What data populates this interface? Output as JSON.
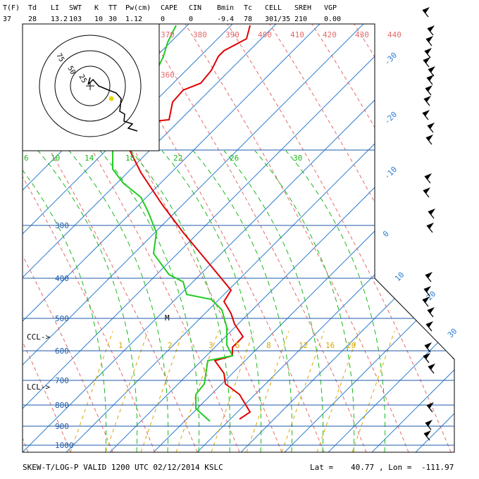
{
  "header": {
    "labels": [
      "T(F)",
      "Td",
      "LI",
      "SWT",
      "K",
      "TT",
      "Pw(cm)",
      "CAPE",
      "CIN",
      "Bmin",
      "Tc",
      "CELL",
      "SREH",
      "VGP"
    ],
    "values": [
      "37",
      "28",
      "13.2",
      "103",
      "10",
      "30",
      "1.12",
      "0",
      "0",
      "-9.4",
      "78",
      "301/35",
      "210",
      "0.00"
    ]
  },
  "footer": {
    "title": "SKEW-T/LOG-P VALID 1200 UTC 02/12/2014   KSLC",
    "lat_label": "Lat =",
    "lat": "40.77",
    "lon_label": ", Lon =",
    "lon": "-111.97"
  },
  "colors": {
    "isobar": "#1e5aa8",
    "isotherm": "#2f7fd0",
    "dry_adiabat": "#e46a6a",
    "moist_adiabat": "#18b818",
    "mixing_ratio": "#d8a800",
    "temperature": "#e00000",
    "dewpoint": "#22cc22",
    "theta_labels": "#e46a6a",
    "hodo_marker": "#e8d800"
  },
  "chart_data": {
    "type": "skew-t",
    "pressure_labels": [
      "300",
      "400",
      "500",
      "600",
      "700",
      "800",
      "900",
      "1000"
    ],
    "temperature_labels": [
      "-30",
      "-20",
      "-10",
      "0",
      "10",
      "20",
      "30"
    ],
    "theta_labels": [
      "370",
      "380",
      "390",
      "400",
      "410",
      "420",
      "430",
      "440"
    ],
    "theta_label_360": "360",
    "theta_e_labels": [
      "6",
      "10",
      "14",
      "18",
      "22",
      "26",
      "30"
    ],
    "mixing_ratio_labels": [
      "1",
      "2",
      "3",
      "5",
      "8",
      "12",
      "16",
      "20"
    ],
    "annotations": {
      "ccl": "CCL->",
      "lcl": "LCL->",
      "m": "M"
    },
    "hodograph_ring_labels": [
      "75",
      "50",
      "25"
    ],
    "temperature_profile_px": "",
    "series": [
      {
        "values_desc": "temperature"
      },
      {
        "values_desc": "dewpoint"
      }
    ]
  }
}
